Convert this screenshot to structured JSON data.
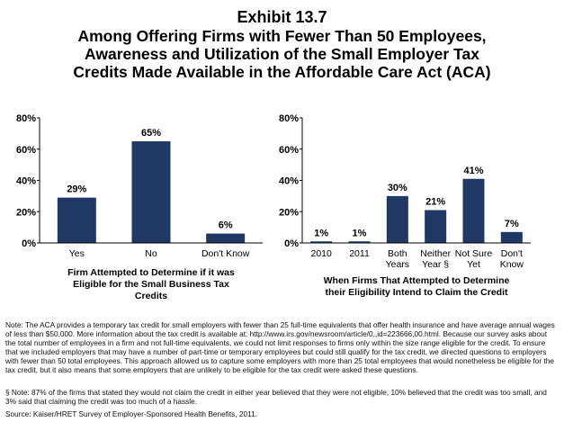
{
  "title": {
    "exhibit": "Exhibit 13.7",
    "lines": [
      "Among Offering Firms with Fewer Than 50 Employees,",
      "Awareness and Utilization of the Small Employer Tax",
      "Credits Made Available in the Affordable Care Act (ACA)"
    ]
  },
  "chart_data": [
    {
      "type": "bar",
      "categories": [
        [
          "Yes"
        ],
        [
          "No"
        ],
        [
          "Don't Know"
        ]
      ],
      "values": [
        29,
        65,
        6
      ],
      "value_labels": [
        "29%",
        "65%",
        "6%"
      ],
      "ylim": [
        0,
        80
      ],
      "yticks": [
        "0%",
        "20%",
        "40%",
        "60%",
        "80%"
      ],
      "xlabel": [
        "Firm Attempted to Determine if it was",
        "Eligible for the Small Business Tax",
        "Credits"
      ],
      "color": "#1f3864"
    },
    {
      "type": "bar",
      "categories": [
        [
          "2010"
        ],
        [
          "2011"
        ],
        [
          "Both",
          "Years"
        ],
        [
          "Neither",
          "Year §"
        ],
        [
          "Not Sure",
          "Yet"
        ],
        [
          "Don't",
          "Know"
        ]
      ],
      "values": [
        1,
        1,
        30,
        21,
        41,
        7
      ],
      "value_labels": [
        "1%",
        "1%",
        "30%",
        "21%",
        "41%",
        "7%"
      ],
      "ylim": [
        0,
        80
      ],
      "yticks": [
        "0%",
        "20%",
        "40%",
        "60%",
        "80%"
      ],
      "xlabel": [
        "When Firms That Attempted to Determine",
        "their Eligibility Intend to Claim the Credit"
      ],
      "color": "#1f3864"
    }
  ],
  "notes": {
    "note1": "Note: The ACA provides a temporary tax credit for small employers with fewer than 25 full-time equivalents that offer health insurance and have average annual wages of less than $50,000.  More information about the tax credit is available at: http://www.irs.gov/newsroom/article/0,,id=223666,00.html. Because our survey asks about the total number of employees in a firm and not full-time equivalents, we could not limit responses to firms only within the size range eligible for the credit. To ensure that we included employers that may have a number of part-time or temporary employees but could still qualify for the tax credit, we directed questions to employers with fewer than 50 total employees. This approach allowed us to capture some employers with more than 25 total employees that would nonetheless be eligible for the tax credit, but it also means that some employers that are unlikely to be eligible for the tax credit  were asked these questions.",
    "note2": "§  Note: 87% of the firms that stated they would not claim the credit in either year believed that they were not eligible, 10% believed that the credit was too small, and 3% said that claiming the credit was too much of a hassle.",
    "source": "Source: Kaiser/HRET Survey of Employer-Sponsored Health Benefits, 2011."
  }
}
